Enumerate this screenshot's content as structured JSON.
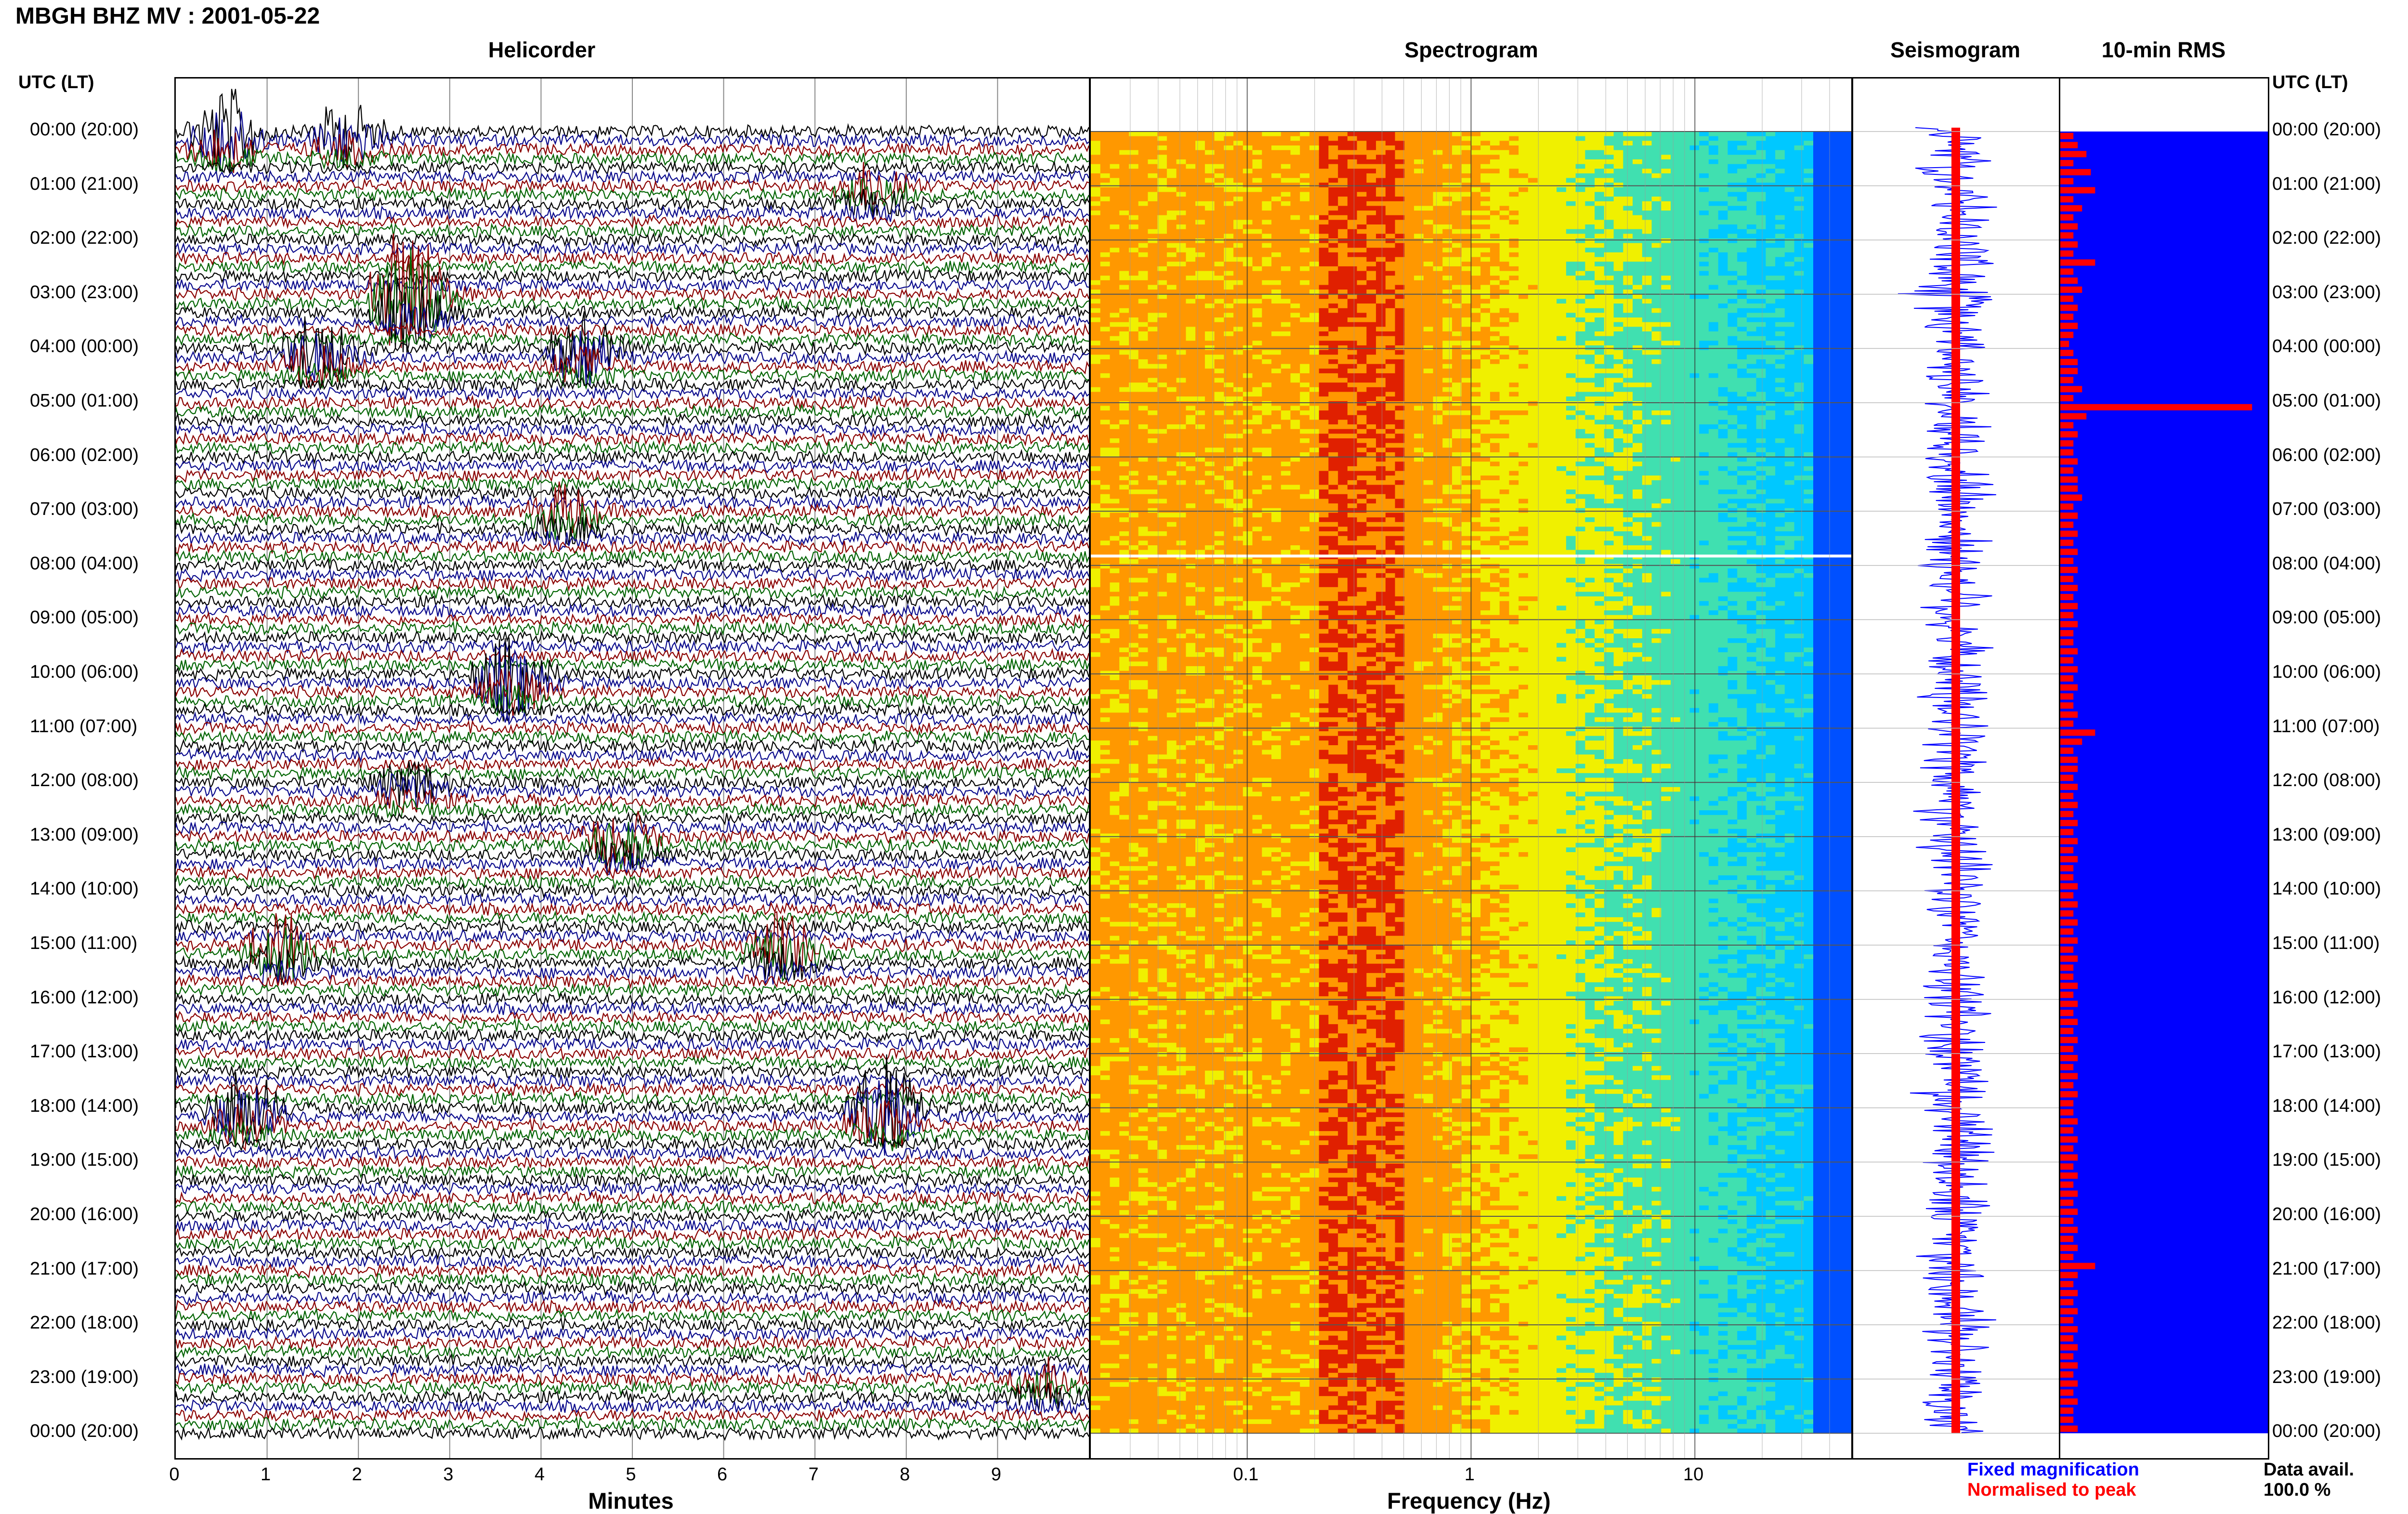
{
  "header": {
    "title": "MBGH BHZ MV : 2001-05-22"
  },
  "panels": {
    "helicorder": "Helicorder",
    "spectrogram": "Spectrogram",
    "seismogram": "Seismogram",
    "rms": "10-min RMS"
  },
  "time_axis": {
    "left_header": "UTC (LT)",
    "right_header": "UTC (LT)",
    "hours": [
      "00:00 (20:00)",
      "01:00 (21:00)",
      "02:00 (22:00)",
      "03:00 (23:00)",
      "04:00 (00:00)",
      "05:00 (01:00)",
      "06:00 (02:00)",
      "07:00 (03:00)",
      "08:00 (04:00)",
      "09:00 (05:00)",
      "10:00 (06:00)",
      "11:00 (07:00)",
      "12:00 (08:00)",
      "13:00 (09:00)",
      "14:00 (10:00)",
      "15:00 (11:00)",
      "16:00 (12:00)",
      "17:00 (13:00)",
      "18:00 (14:00)",
      "19:00 (15:00)",
      "20:00 (16:00)",
      "21:00 (17:00)",
      "22:00 (18:00)",
      "23:00 (19:00)",
      "00:00 (20:00)"
    ]
  },
  "legend": {
    "fixed": "Fixed magnification",
    "normalised": "Normalised to peak",
    "avail_label": "Data avail.",
    "avail_value": "100.0 %"
  },
  "colors": {
    "trace_cycle": [
      "#000000",
      "#0a0a8c",
      "#8b0000",
      "#006400"
    ],
    "seismo_fixed": "#0000ff",
    "seismo_norm": "#ff0000",
    "rms_fill": "#0000ff",
    "rms_bar": "#ff0000"
  },
  "chart_data": [
    {
      "type": "line",
      "name": "helicorder",
      "xlabel": "Minutes",
      "x_ticks": [
        "0",
        "1",
        "2",
        "3",
        "4",
        "5",
        "6",
        "7",
        "8",
        "9"
      ],
      "xlim": [
        0,
        10
      ],
      "rows_per_hour": 6,
      "hours": 24,
      "events": [
        {
          "hour": 0,
          "minute": 0.3,
          "amp": 2.0
        },
        {
          "hour": 0,
          "minute": 1.6,
          "amp": 1.4
        },
        {
          "hour": 1,
          "minute": 7.4,
          "amp": 1.2
        },
        {
          "hour": 3,
          "minute": 2.3,
          "amp": 3.5
        },
        {
          "hour": 4,
          "minute": 1.3,
          "amp": 1.8
        },
        {
          "hour": 4,
          "minute": 4.2,
          "amp": 1.6
        },
        {
          "hour": 7,
          "minute": 4.0,
          "amp": 1.2
        },
        {
          "hour": 10,
          "minute": 3.4,
          "amp": 2.2
        },
        {
          "hour": 12,
          "minute": 2.3,
          "amp": 1.1
        },
        {
          "hour": 13,
          "minute": 4.6,
          "amp": 1.5
        },
        {
          "hour": 15,
          "minute": 0.9,
          "amp": 1.6
        },
        {
          "hour": 15,
          "minute": 6.4,
          "amp": 1.6
        },
        {
          "hour": 18,
          "minute": 0.5,
          "amp": 1.8
        },
        {
          "hour": 18,
          "minute": 7.5,
          "amp": 2.4
        },
        {
          "hour": 23,
          "minute": 9.3,
          "amp": 1.0
        }
      ]
    },
    {
      "type": "heatmap",
      "name": "spectrogram",
      "xlabel": "Frequency (Hz)",
      "x_scale": "log",
      "x_ticks": [
        "0.1",
        "1",
        "10"
      ],
      "xlim": [
        0.02,
        50
      ],
      "ylim_hours": [
        0,
        24
      ],
      "peak_band_hz": [
        0.2,
        0.5
      ],
      "data_gap_hour": 7.8
    },
    {
      "type": "line",
      "name": "seismogram",
      "series": [
        "Fixed magnification",
        "Normalised to peak"
      ]
    },
    {
      "type": "bar",
      "name": "10-min RMS",
      "values": [
        3,
        4,
        6,
        3,
        7,
        3,
        8,
        3,
        5,
        3,
        4,
        3,
        4,
        3,
        8,
        3,
        4,
        5,
        3,
        4,
        3,
        4,
        3,
        2,
        3,
        4,
        4,
        3,
        5,
        3,
        4,
        6,
        3,
        4,
        3,
        3,
        4,
        3,
        4,
        4,
        5,
        3,
        4,
        3,
        4,
        3,
        4,
        3,
        4,
        3,
        4,
        3,
        4,
        3,
        4,
        3,
        3,
        4,
        3,
        4,
        3,
        4,
        3,
        3,
        4,
        3,
        4,
        5,
        3,
        4,
        4,
        3,
        4,
        3,
        4,
        3,
        4,
        3,
        4,
        3,
        4,
        3,
        3,
        4,
        3,
        4,
        3,
        4,
        3,
        4,
        3,
        4,
        3,
        3,
        4,
        3,
        4,
        3,
        4,
        3,
        4,
        3,
        4,
        3,
        4,
        3,
        4,
        3,
        3,
        4,
        3,
        4,
        3,
        4,
        3,
        4,
        3,
        4,
        3,
        4,
        3,
        4,
        3,
        4,
        3,
        3,
        4,
        3,
        4,
        3,
        4,
        3,
        4,
        3,
        4,
        3,
        4,
        3,
        4,
        3,
        4,
        3,
        3,
        4
      ]
    }
  ]
}
